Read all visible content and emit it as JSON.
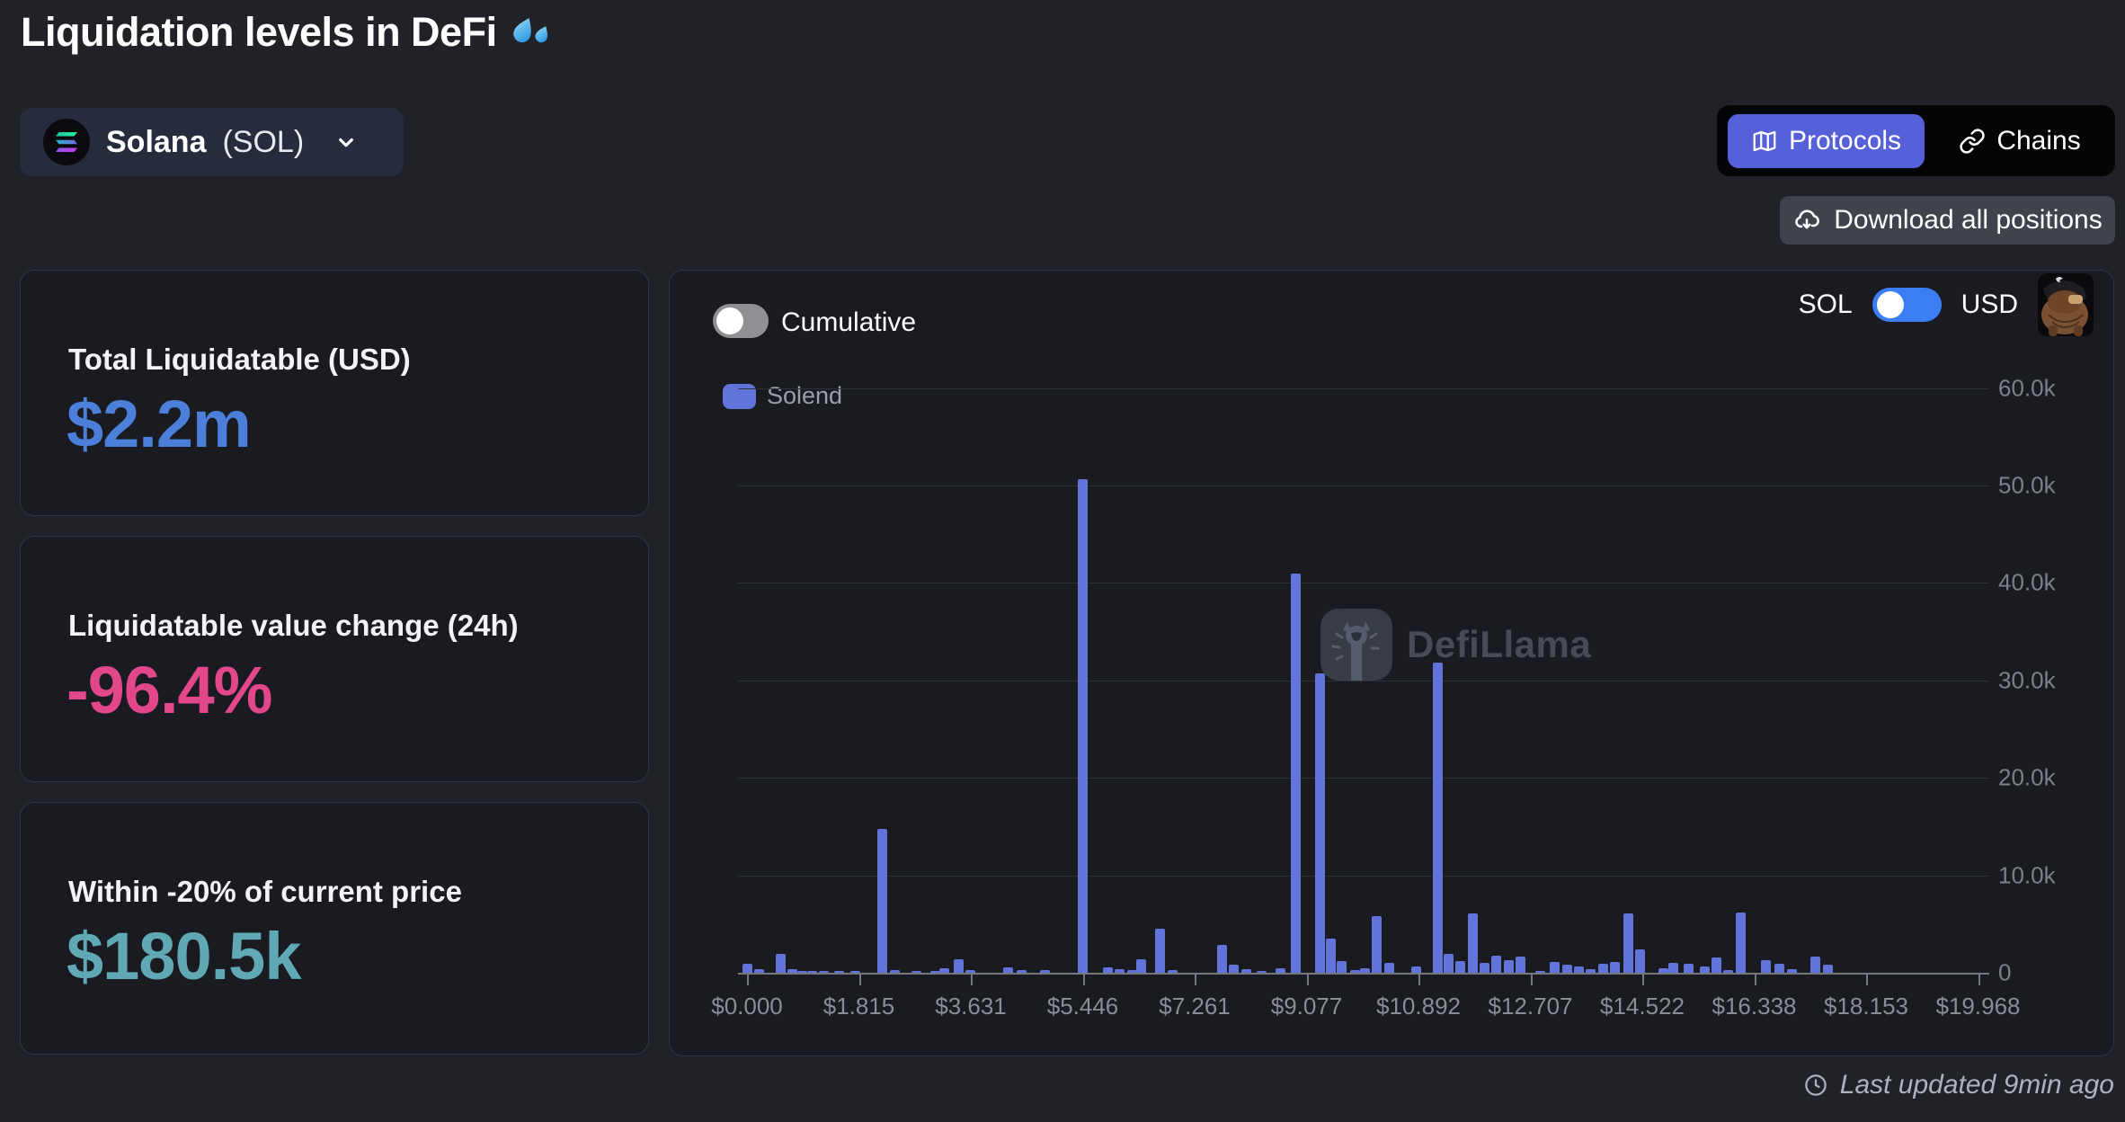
{
  "page": {
    "title": "Liquidation levels in DeFi",
    "title_emoji": "splashing-sweat-droplets",
    "last_updated": "Last updated 9min ago"
  },
  "token_selector": {
    "token_name": "Solana",
    "token_symbol": "(SOL)"
  },
  "view_toggle": {
    "options": [
      "Protocols",
      "Chains"
    ],
    "active": "Protocols"
  },
  "actions": {
    "download_label": "Download all positions"
  },
  "stats": [
    {
      "label": "Total Liquidatable (USD)",
      "value": "$2.2m",
      "color": "#4c7fd9"
    },
    {
      "label": "Liquidatable value change (24h)",
      "value": "-96.4%",
      "color": "#e2478a"
    },
    {
      "label": "Within -20% of current price",
      "value": "$180.5k",
      "color": "#60a8b4"
    }
  ],
  "chart_controls": {
    "cumulative_label": "Cumulative",
    "cumulative_enabled": false,
    "currency_left": "SOL",
    "currency_right": "USD",
    "usd_toggle_on": true
  },
  "watermark_text": "DefiLlama",
  "colors": {
    "accent_blue": "#5560d9",
    "toggle_blue": "#3b7df2",
    "bar_blue": "#6273d9"
  },
  "chart_data": {
    "type": "bar",
    "title": "Liquidatable positions by SOL price level",
    "legend": [
      "Solend"
    ],
    "legend_position": "top-left",
    "grid": "horizontal",
    "xlim": [
      0,
      19.968
    ],
    "ylim": [
      0,
      60000
    ],
    "x_tick_labels": [
      "$0.000",
      "$1.815",
      "$3.631",
      "$5.446",
      "$7.261",
      "$9.077",
      "$10.892",
      "$12.707",
      "$14.522",
      "$16.338",
      "$18.153",
      "$19.968"
    ],
    "y_tick_labels": [
      "0",
      "10.0k",
      "20.0k",
      "30.0k",
      "40.0k",
      "50.0k",
      "60.0k"
    ],
    "series": [
      {
        "name": "Solend",
        "color": "#6273d9",
        "x_unit": "SOL price (USD)",
        "y_unit": "USD (thousands)",
        "points": [
          [
            0.0,
            0.9
          ],
          [
            0.19,
            0.4
          ],
          [
            0.54,
            1.9
          ],
          [
            0.73,
            0.35
          ],
          [
            0.9,
            0.2
          ],
          [
            1.05,
            0.15
          ],
          [
            1.25,
            0.15
          ],
          [
            1.5,
            0.15
          ],
          [
            1.75,
            0.2
          ],
          [
            2.2,
            14.8
          ],
          [
            2.4,
            0.3
          ],
          [
            2.75,
            0.15
          ],
          [
            3.05,
            0.2
          ],
          [
            3.2,
            0.5
          ],
          [
            3.44,
            1.4
          ],
          [
            3.63,
            0.3
          ],
          [
            4.24,
            0.55
          ],
          [
            4.46,
            0.25
          ],
          [
            4.83,
            0.3
          ],
          [
            5.45,
            50.6
          ],
          [
            5.86,
            0.55
          ],
          [
            6.05,
            0.4
          ],
          [
            6.25,
            0.3
          ],
          [
            6.4,
            1.4
          ],
          [
            6.7,
            4.5
          ],
          [
            6.9,
            0.3
          ],
          [
            7.7,
            2.9
          ],
          [
            7.9,
            0.8
          ],
          [
            8.1,
            0.4
          ],
          [
            8.35,
            0.1
          ],
          [
            8.65,
            0.5
          ],
          [
            8.9,
            41.0
          ],
          [
            9.3,
            30.7
          ],
          [
            9.47,
            3.5
          ],
          [
            9.64,
            1.2
          ],
          [
            9.86,
            0.3
          ],
          [
            10.03,
            0.5
          ],
          [
            10.22,
            5.8
          ],
          [
            10.42,
            1.0
          ],
          [
            10.85,
            0.6
          ],
          [
            11.2,
            31.8
          ],
          [
            11.38,
            1.9
          ],
          [
            11.57,
            1.2
          ],
          [
            11.78,
            6.1
          ],
          [
            11.97,
            1.0
          ],
          [
            12.16,
            1.75
          ],
          [
            12.36,
            1.3
          ],
          [
            12.55,
            1.7
          ],
          [
            12.87,
            0.2
          ],
          [
            13.1,
            1.1
          ],
          [
            13.3,
            0.8
          ],
          [
            13.5,
            0.6
          ],
          [
            13.69,
            0.4
          ],
          [
            13.89,
            0.9
          ],
          [
            14.08,
            1.1
          ],
          [
            14.3,
            6.1
          ],
          [
            14.48,
            2.4
          ],
          [
            14.86,
            0.45
          ],
          [
            15.03,
            1.0
          ],
          [
            15.28,
            0.9
          ],
          [
            15.53,
            0.6
          ],
          [
            15.73,
            1.6
          ],
          [
            15.91,
            0.25
          ],
          [
            16.12,
            6.2
          ],
          [
            16.53,
            1.3
          ],
          [
            16.75,
            0.9
          ],
          [
            16.95,
            0.4
          ],
          [
            17.33,
            1.7
          ],
          [
            17.54,
            0.85
          ]
        ]
      }
    ]
  }
}
